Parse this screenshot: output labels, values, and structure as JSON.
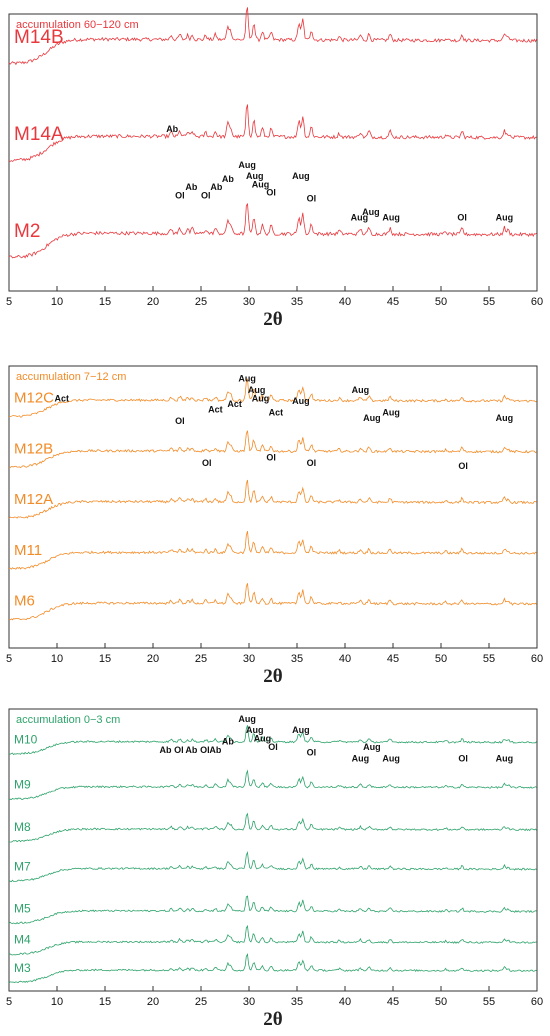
{
  "chart_data": [
    {
      "type": "line",
      "title": "accumulation 60−120 cm",
      "color": "#e8383d",
      "xlabel": "2θ",
      "xlim": [
        5,
        60
      ],
      "xticks": [
        5,
        10,
        15,
        20,
        25,
        30,
        35,
        40,
        45,
        50,
        55,
        60
      ],
      "series": [
        {
          "name": "M14B",
          "baseline": 0.82
        },
        {
          "name": "M14A",
          "baseline": 0.47
        },
        {
          "name": "M2",
          "baseline": 0.12
        }
      ],
      "annotations": [
        {
          "text": "Ol",
          "x": 22.8
        },
        {
          "text": "Ab",
          "x": 24.0
        },
        {
          "text": "Ol",
          "x": 25.5
        },
        {
          "text": "Ab",
          "x": 26.6
        },
        {
          "text": "Ab",
          "x": 27.8
        },
        {
          "text": "Aug",
          "x": 29.8
        },
        {
          "text": "Aug",
          "x": 30.6
        },
        {
          "text": "Aug",
          "x": 31.2
        },
        {
          "text": "Ol",
          "x": 32.3
        },
        {
          "text": "Aug",
          "x": 35.4
        },
        {
          "text": "Ol",
          "x": 36.5
        },
        {
          "text": "Aug",
          "x": 41.5
        },
        {
          "text": "Aug",
          "x": 42.7
        },
        {
          "text": "Aug",
          "x": 44.8
        },
        {
          "text": "Ol",
          "x": 52.2
        },
        {
          "text": "Aug",
          "x": 56.6
        },
        {
          "text": "Ab",
          "x": 22.0
        }
      ]
    },
    {
      "type": "line",
      "title": "accumulation 7−12 cm",
      "color": "#f28c28",
      "xlabel": "2θ",
      "xlim": [
        5,
        60
      ],
      "xticks": [
        5,
        10,
        15,
        20,
        25,
        30,
        35,
        40,
        45,
        50,
        55,
        60
      ],
      "series": [
        {
          "name": "M12C",
          "baseline": 0.82
        },
        {
          "name": "M12B",
          "baseline": 0.64
        },
        {
          "name": "M12A",
          "baseline": 0.46
        },
        {
          "name": "M11",
          "baseline": 0.28
        },
        {
          "name": "M6",
          "baseline": 0.1
        }
      ],
      "annotations": [
        {
          "text": "Act",
          "x": 10.5
        },
        {
          "text": "Act",
          "x": 26.5
        },
        {
          "text": "Act",
          "x": 28.5
        },
        {
          "text": "Aug",
          "x": 29.8
        },
        {
          "text": "Aug",
          "x": 30.8
        },
        {
          "text": "Aug",
          "x": 31.2
        },
        {
          "text": "Act",
          "x": 32.8
        },
        {
          "text": "Aug",
          "x": 35.4
        },
        {
          "text": "Aug",
          "x": 41.6
        },
        {
          "text": "Aug",
          "x": 42.8
        },
        {
          "text": "Aug",
          "x": 44.8
        },
        {
          "text": "Aug",
          "x": 56.6
        },
        {
          "text": "Ol",
          "x": 22.8
        },
        {
          "text": "Ol",
          "x": 25.6
        },
        {
          "text": "Ol",
          "x": 32.3
        },
        {
          "text": "Ol",
          "x": 36.5
        },
        {
          "text": "Ol",
          "x": 52.3
        }
      ]
    },
    {
      "type": "line",
      "title": "accumulation 0−3 cm",
      "color": "#2ea36b",
      "xlabel": "2θ",
      "xlim": [
        5,
        60
      ],
      "xticks": [
        5,
        10,
        15,
        20,
        25,
        30,
        35,
        40,
        45,
        50,
        55,
        60
      ],
      "series": [
        {
          "name": "M10",
          "baseline": 0.84
        },
        {
          "name": "M9",
          "baseline": 0.68
        },
        {
          "name": "M8",
          "baseline": 0.53
        },
        {
          "name": "M7",
          "baseline": 0.39
        },
        {
          "name": "M5",
          "baseline": 0.24
        },
        {
          "name": "M4",
          "baseline": 0.13
        },
        {
          "name": "M3",
          "baseline": 0.03
        }
      ],
      "annotations": [
        {
          "text": "Ab",
          "x": 21.3
        },
        {
          "text": "Ol",
          "x": 22.7
        },
        {
          "text": "Ab",
          "x": 24.0
        },
        {
          "text": "Ol",
          "x": 25.4
        },
        {
          "text": "Ab",
          "x": 26.5
        },
        {
          "text": "Ab",
          "x": 27.8
        },
        {
          "text": "Aug",
          "x": 29.8
        },
        {
          "text": "Aug",
          "x": 30.6
        },
        {
          "text": "Aug",
          "x": 31.4
        },
        {
          "text": "Ol",
          "x": 32.5
        },
        {
          "text": "Aug",
          "x": 35.4
        },
        {
          "text": "Ol",
          "x": 36.5
        },
        {
          "text": "Aug",
          "x": 41.6
        },
        {
          "text": "Aug",
          "x": 42.8
        },
        {
          "text": "Aug",
          "x": 44.8
        },
        {
          "text": "Ol",
          "x": 52.3
        },
        {
          "text": "Aug",
          "x": 56.6
        }
      ]
    }
  ]
}
